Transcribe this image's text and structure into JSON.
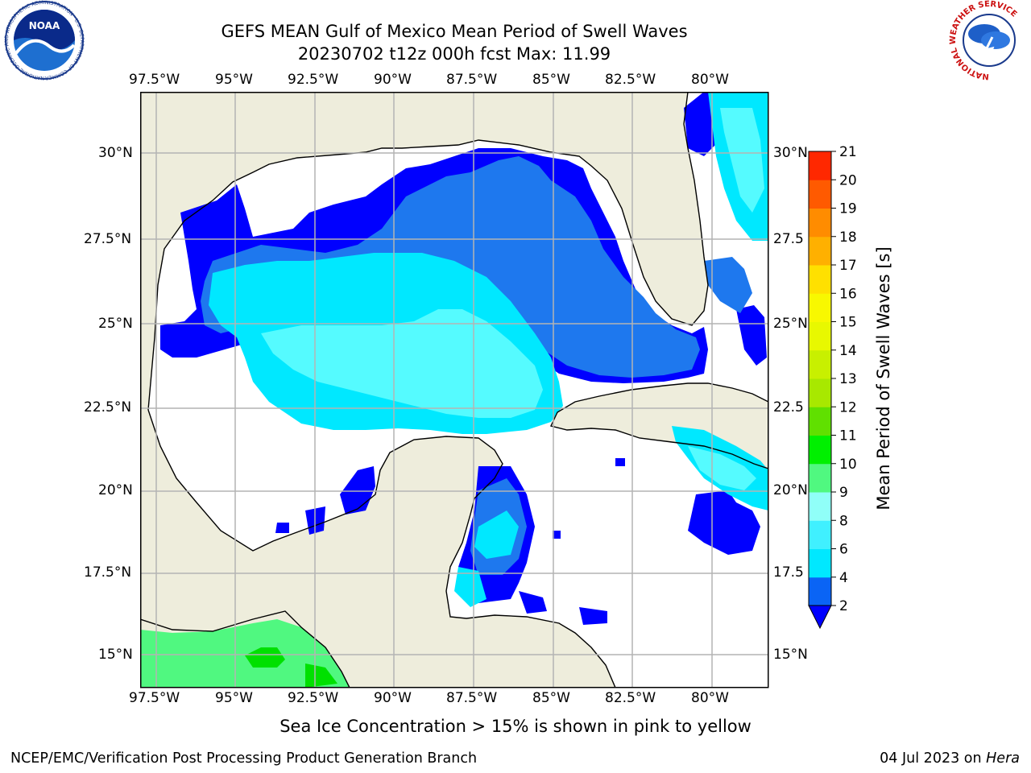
{
  "title": {
    "line1": "GEFS MEAN Gulf of Mexico Mean Period of Swell Waves",
    "line2": "20230702 t12z 000h fcst   Max: 11.99"
  },
  "axes": {
    "lon_labels": [
      "97.5°W",
      "95°W",
      "92.5°W",
      "90°W",
      "87.5°W",
      "85°W",
      "82.5°W",
      "80°W"
    ],
    "lat_labels_left": [
      "30°N",
      "27.5°N",
      "25°N",
      "22.5°N",
      "20°N",
      "17.5°N",
      "15°N"
    ],
    "lat_labels_right": [
      "30°N",
      "27.5",
      "25°N",
      "22.5",
      "20°N",
      "17.5",
      "15°N"
    ]
  },
  "colorbar": {
    "label": "Mean Period of Swell Waves [s]",
    "ticks": [
      "2",
      "4",
      "6",
      "8",
      "9",
      "10",
      "11",
      "12",
      "13",
      "14",
      "15",
      "16",
      "17",
      "18",
      "19",
      "20",
      "21"
    ],
    "colors": [
      "#0a64f5",
      "#00e8ff",
      "#40f0ff",
      "#90fff8",
      "#50f880",
      "#00f000",
      "#60e000",
      "#a8e800",
      "#c8f000",
      "#e8f800",
      "#f8f800",
      "#ffe000",
      "#ffb000",
      "#ff8c00",
      "#ff5a00",
      "#ff2800"
    ],
    "under_color": "#0000ff"
  },
  "map_colors": {
    "land": "#eeeddc",
    "ocean_nodata": "#ffffff",
    "band_2_4": "#0000ff",
    "band_4_6": "#1e78ee",
    "band_6_8": "#00e8ff",
    "band_8_9": "#55fbff",
    "band_9_10": "#50f880",
    "band_10_11": "#00e000"
  },
  "logos": {
    "noaa": {
      "text": "NOAA",
      "ring_text": "NATIONAL OCEANIC AND ATMOSPHERIC ADMINISTRATION · U.S. DEPARTMENT OF COMMERCE"
    },
    "nws": {
      "ring_text": "NATIONAL WEATHER SERVICE"
    }
  },
  "caption": "Sea Ice Concentration > 15% is shown in pink to yellow",
  "footer": {
    "left": "NCEP/EMC/Verification Post Processing Product Generation Branch",
    "right_date": "04 Jul 2023 on ",
    "right_host": "Hera"
  }
}
